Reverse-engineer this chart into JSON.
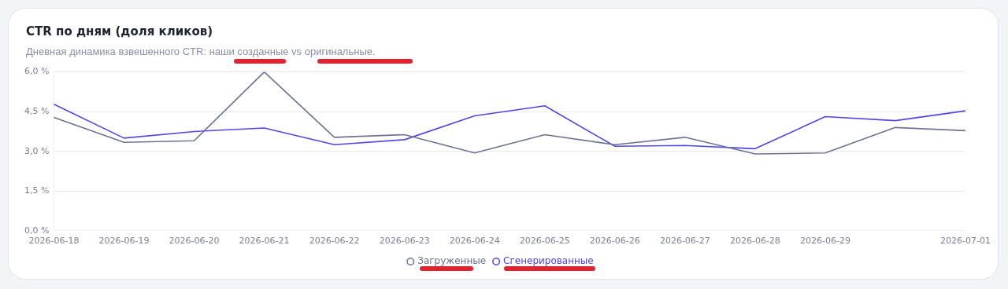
{
  "chart_data": {
    "type": "line",
    "title": "CTR по дням (доля кликов)",
    "subtitle": "Дневная динамика взвешенного CTR: наши созданные vs оригинальные.",
    "categories": [
      "2026-06-18",
      "2026-06-19",
      "2026-06-20",
      "2026-06-21",
      "2026-06-22",
      "2026-06-23",
      "2026-06-24",
      "2026-06-25",
      "2026-06-26",
      "2026-06-27",
      "2026-06-28",
      "2026-06-29",
      null,
      "2026-07-01"
    ],
    "series": [
      {
        "name": "Загруженные",
        "color": "#6b7391",
        "values": [
          4.28,
          3.34,
          3.4,
          6.0,
          3.53,
          3.63,
          2.94,
          3.63,
          3.25,
          3.53,
          2.9,
          2.94,
          3.9,
          3.78
        ]
      },
      {
        "name": "Сгенерированные",
        "color": "#4f46e5",
        "values": [
          4.78,
          3.5,
          3.75,
          3.88,
          3.25,
          3.44,
          4.34,
          4.72,
          3.19,
          3.22,
          3.1,
          4.31,
          4.16,
          4.53
        ]
      }
    ],
    "ylim": [
      0,
      6
    ],
    "yticks": [
      {
        "value": 0,
        "label": "0,0 %"
      },
      {
        "value": 1.5,
        "label": "1,5 %"
      },
      {
        "value": 3,
        "label": "3,0 %"
      },
      {
        "value": 4.5,
        "label": "4,5 %"
      },
      {
        "value": 6,
        "label": "6,0 %"
      }
    ],
    "grid": "y",
    "legend": "bottom",
    "marker": "none",
    "line_style": "solid"
  }
}
